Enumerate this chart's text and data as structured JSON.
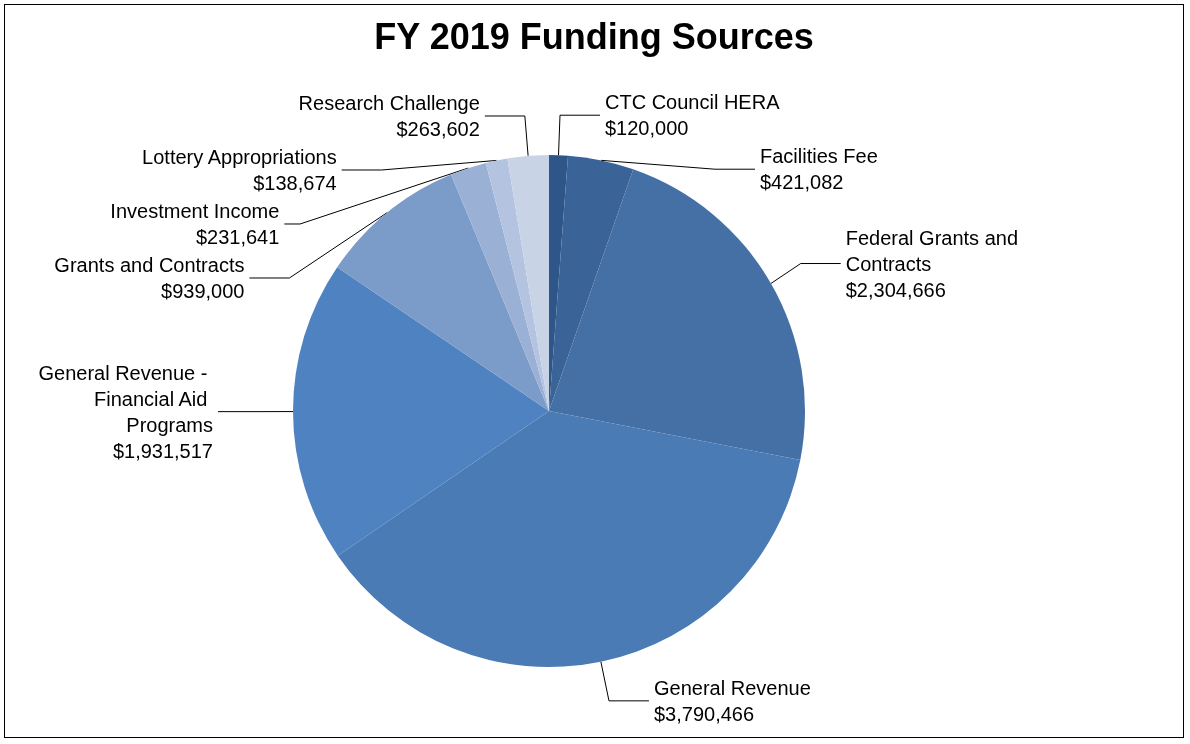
{
  "chart_data": {
    "type": "pie",
    "title": "FY 2019 Funding Sources",
    "categories": [
      "CTC Council HERA",
      "Facilities Fee",
      "Federal Grants and Contracts",
      "General Revenue",
      "General Revenue - Financial Aid Programs",
      "Grants and Contracts",
      "Investment Income",
      "Lottery Appropriations",
      "Research Challenge"
    ],
    "values": [
      120000,
      421082,
      2304666,
      3790466,
      1931517,
      939000,
      231641,
      138674,
      263602
    ],
    "value_labels": [
      "$120,000",
      "$421,082",
      "$2,304,666",
      "$3,790,466",
      "$1,931,517",
      "$939,000",
      "$231,641",
      "$138,674",
      "$263,602"
    ],
    "colors": [
      "#2f5689",
      "#3a6398",
      "#4470a5",
      "#4a7bb5",
      "#4f82c0",
      "#7b9bc9",
      "#9bb0d5",
      "#b3c3e0",
      "#c9d3e6"
    ],
    "legend": false
  }
}
